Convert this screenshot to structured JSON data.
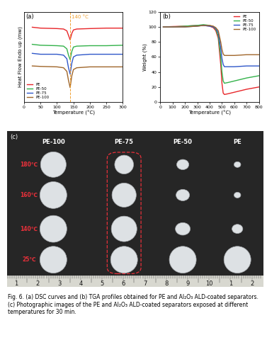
{
  "chart_data": [
    {
      "type": "line",
      "label": "(a)",
      "x_label": "Temperature (°C)",
      "y_label": "Heat Flow Endo up (mw)",
      "x": [
        25,
        50,
        100,
        120,
        130,
        135,
        140,
        145,
        150,
        160,
        200,
        250,
        300
      ],
      "series": [
        {
          "name": "PE",
          "color": "#e8262a",
          "values": [
            8.3,
            8.2,
            8.15,
            8.1,
            7.9,
            7.4,
            6.9,
            7.6,
            8.0,
            8.1,
            8.15,
            8.2,
            8.2
          ]
        },
        {
          "name": "PE-50",
          "color": "#33b24a",
          "values": [
            6.4,
            6.3,
            6.25,
            6.2,
            5.9,
            5.2,
            4.7,
            5.6,
            6.1,
            6.2,
            6.25,
            6.25,
            6.3
          ]
        },
        {
          "name": "PE-75",
          "color": "#2f57c9",
          "values": [
            5.4,
            5.3,
            5.3,
            5.2,
            4.8,
            3.8,
            3.1,
            4.3,
            5.0,
            5.2,
            5.3,
            5.3,
            5.3
          ]
        },
        {
          "name": "PE-100",
          "color": "#a0662a",
          "values": [
            4.0,
            3.95,
            3.9,
            3.8,
            3.4,
            2.4,
            1.6,
            2.9,
            3.6,
            3.8,
            3.9,
            3.9,
            3.9
          ]
        }
      ],
      "xlim": [
        0,
        300
      ],
      "xticks": [
        0,
        50,
        100,
        150,
        200,
        250,
        300
      ],
      "ylim": [
        0,
        10
      ],
      "tick_labels": "x",
      "legend": "lower left",
      "annotations": [
        {
          "x": 140,
          "text": "140 °C",
          "color": "#f0a030"
        }
      ]
    },
    {
      "type": "line",
      "label": "(b)",
      "x_label": "Temperature (°C)",
      "y_label": "Weight (%)",
      "x": [
        25,
        100,
        200,
        300,
        350,
        400,
        430,
        450,
        470,
        490,
        500,
        510,
        520,
        550,
        600,
        700,
        800
      ],
      "series": [
        {
          "name": "PE",
          "color": "#e8262a",
          "values": [
            100,
            100.5,
            101,
            102,
            102,
            101,
            99,
            95,
            85,
            50,
            25,
            12,
            10,
            11,
            13,
            17,
            20
          ]
        },
        {
          "name": "PE-50",
          "color": "#33b24a",
          "values": [
            100,
            100,
            101,
            102,
            103,
            102,
            100,
            97,
            88,
            60,
            40,
            28,
            25,
            26,
            28,
            32,
            35
          ]
        },
        {
          "name": "PE-75",
          "color": "#2f57c9",
          "values": [
            100,
            100,
            100,
            101,
            102,
            101,
            100,
            98,
            92,
            72,
            58,
            50,
            47,
            47,
            47,
            48,
            48
          ]
        },
        {
          "name": "PE-100",
          "color": "#a0662a",
          "values": [
            100,
            100,
            100,
            101,
            102,
            102,
            101,
            99,
            95,
            80,
            70,
            64,
            62,
            62,
            62,
            63,
            63
          ]
        }
      ],
      "xlim": [
        0,
        800
      ],
      "xticks": [
        0,
        100,
        200,
        300,
        400,
        500,
        600,
        700,
        800
      ],
      "ylim": [
        0,
        120
      ],
      "yticks": [
        0,
        20,
        40,
        60,
        80,
        100,
        120
      ],
      "legend": "upper right"
    }
  ],
  "photo": {
    "label": "(c)",
    "columns": [
      "PE-100",
      "PE-75",
      "PE-50",
      "PE"
    ],
    "rows": [
      "180℃",
      "160℃",
      "140℃",
      "25℃"
    ],
    "ruler_labels": [
      "1",
      "2",
      "3",
      "4",
      "5",
      "6",
      "7",
      "8",
      "9",
      "10",
      "1",
      "2"
    ]
  },
  "caption": "Fig. 6. (a) DSC curves and (b) TGA profiles obtained for PE and Al₂O₃ ALD-coated separators. (c) Photographic images of the PE and Al₂O₃ ALD-coated separators exposed at different temperatures for 30 min."
}
